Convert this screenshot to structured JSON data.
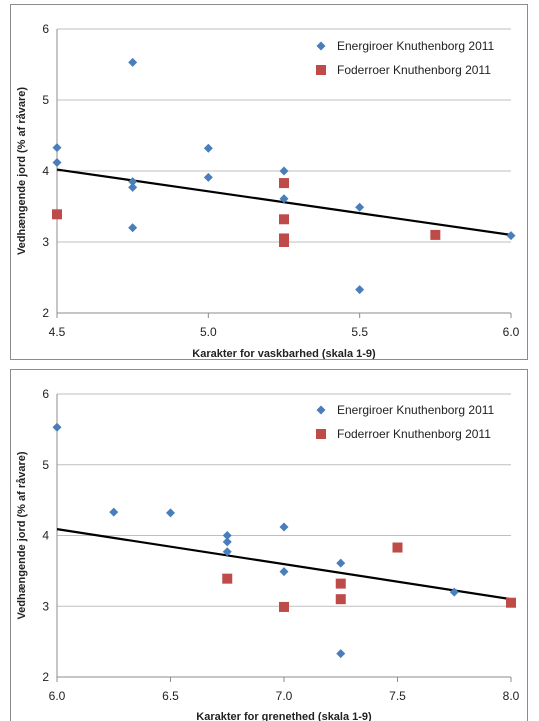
{
  "chart_data": [
    {
      "type": "scatter",
      "title": "",
      "xlabel": "Karakter for vaskbarhed (skala 1-9)",
      "ylabel": "Vedhængende jord (% af råvare)",
      "xlim": [
        4.5,
        6.0
      ],
      "ylim": [
        2,
        6
      ],
      "xticks": [
        "4.5",
        "5.0",
        "5.5",
        "6.0"
      ],
      "yticks": [
        "2",
        "3",
        "4",
        "5",
        "6"
      ],
      "grid": "horizontal",
      "legend": "top-right",
      "series": [
        {
          "name": "Energiroer Knuthenborg 2011",
          "marker": "diamond",
          "color": "#4a7ebb",
          "points": [
            [
              4.5,
              4.33
            ],
            [
              4.5,
              4.12
            ],
            [
              4.75,
              5.53
            ],
            [
              4.75,
              3.85
            ],
            [
              4.75,
              3.77
            ],
            [
              4.75,
              3.2
            ],
            [
              5.0,
              4.32
            ],
            [
              5.0,
              3.91
            ],
            [
              5.25,
              4.0
            ],
            [
              5.25,
              3.61
            ],
            [
              5.5,
              3.49
            ],
            [
              5.5,
              2.33
            ],
            [
              6.0,
              3.09
            ]
          ]
        },
        {
          "name": "Foderroer Knuthenborg 2011",
          "marker": "square",
          "color": "#be4b48",
          "points": [
            [
              4.5,
              3.39
            ],
            [
              5.25,
              3.83
            ],
            [
              5.25,
              3.32
            ],
            [
              5.25,
              3.05
            ],
            [
              5.25,
              3.0
            ],
            [
              5.75,
              3.1
            ]
          ]
        }
      ],
      "trendline": {
        "x": [
          4.5,
          6.0
        ],
        "y": [
          4.02,
          3.1
        ],
        "color": "#000000"
      }
    },
    {
      "type": "scatter",
      "title": "",
      "xlabel": "Karakter for grenethed (skala 1-9)",
      "ylabel": "Vedhængende jord (% af råvare)",
      "xlim": [
        6.0,
        8.0
      ],
      "ylim": [
        2,
        6
      ],
      "xticks": [
        "6.0",
        "6.5",
        "7.0",
        "7.5",
        "8.0"
      ],
      "yticks": [
        "2",
        "3",
        "4",
        "5",
        "6"
      ],
      "grid": "horizontal",
      "legend": "top-right",
      "series": [
        {
          "name": "Energiroer Knuthenborg 2011",
          "marker": "diamond",
          "color": "#4a7ebb",
          "points": [
            [
              6.0,
              5.53
            ],
            [
              6.25,
              4.33
            ],
            [
              6.5,
              4.32
            ],
            [
              6.75,
              4.0
            ],
            [
              6.75,
              3.91
            ],
            [
              6.75,
              3.77
            ],
            [
              7.0,
              4.12
            ],
            [
              7.0,
              3.49
            ],
            [
              7.25,
              3.61
            ],
            [
              7.25,
              2.33
            ],
            [
              7.75,
              3.2
            ],
            [
              8.0,
              3.05
            ]
          ]
        },
        {
          "name": "Foderroer Knuthenborg 2011",
          "marker": "square",
          "color": "#be4b48",
          "points": [
            [
              6.75,
              3.39
            ],
            [
              7.0,
              2.99
            ],
            [
              7.25,
              3.32
            ],
            [
              7.25,
              3.1
            ],
            [
              7.5,
              3.83
            ],
            [
              8.0,
              3.05
            ]
          ]
        }
      ],
      "trendline": {
        "x": [
          6.0,
          8.0
        ],
        "y": [
          4.09,
          3.1
        ],
        "color": "#000000"
      }
    }
  ]
}
